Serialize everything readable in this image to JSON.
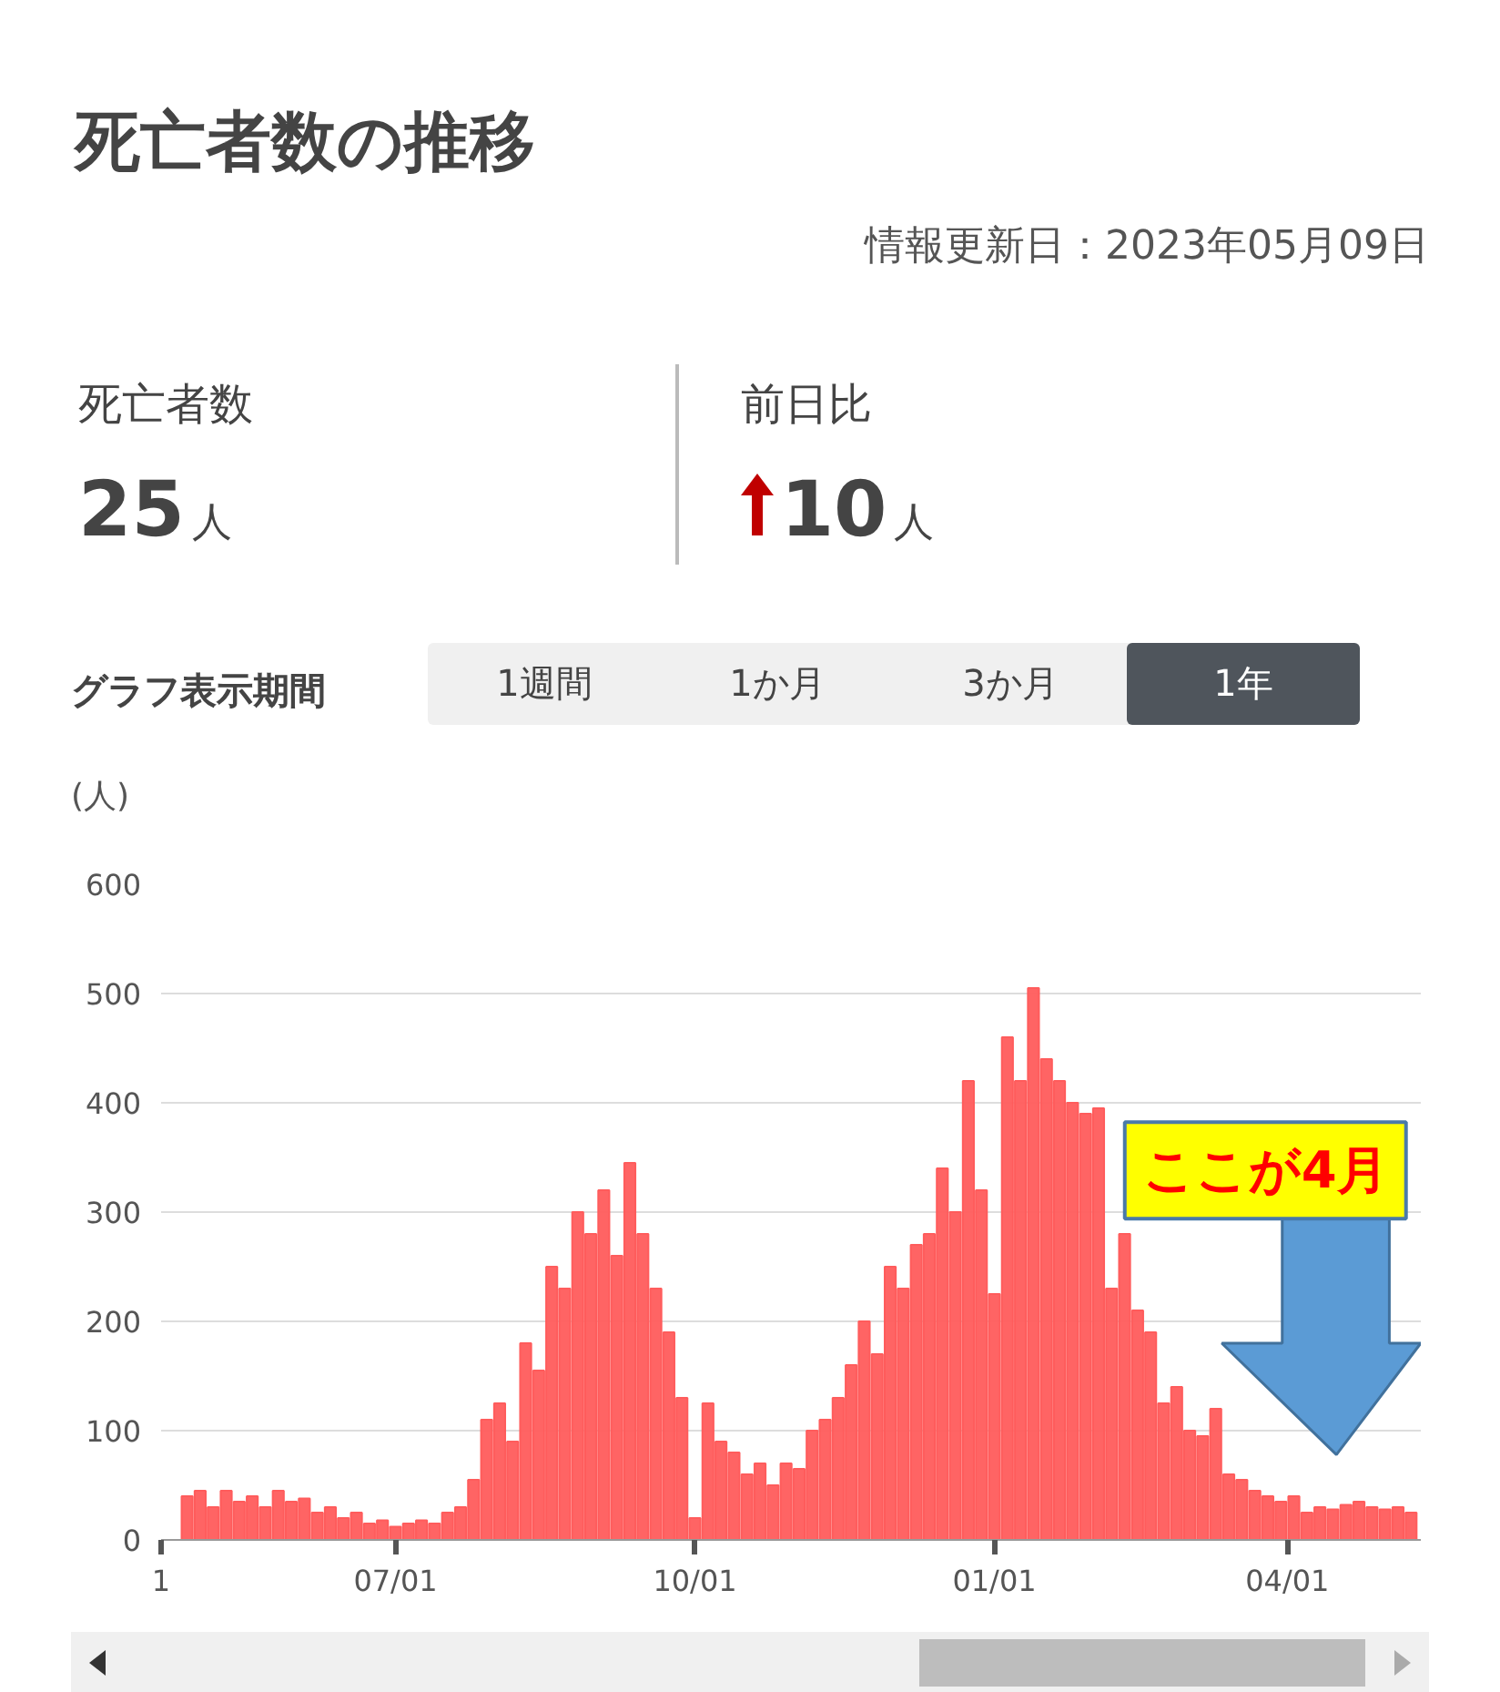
{
  "chart_data": {
    "type": "bar",
    "title": "死亡者数の推移",
    "subtitle": "情報更新日：2023年05月09日",
    "ylabel": "(人)",
    "annotations": [
      "死亡者数",
      "25",
      "人",
      "前日比",
      "10",
      "人",
      "グラフ表示期間",
      "1週間",
      "1か月",
      "3か月",
      "1年",
      "ここが4月"
    ],
    "x": [
      "2022-04-28",
      "2022-05-02",
      "2022-05-06",
      "2022-05-10",
      "2022-05-14",
      "2022-05-18",
      "2022-05-22",
      "2022-05-26",
      "2022-05-30",
      "2022-06-03",
      "2022-06-07",
      "2022-06-11",
      "2022-06-15",
      "2022-06-19",
      "2022-06-23",
      "2022-06-27",
      "2022-07-01",
      "2022-07-05",
      "2022-07-09",
      "2022-07-13",
      "2022-07-17",
      "2022-07-21",
      "2022-07-25",
      "2022-07-29",
      "2022-08-02",
      "2022-08-06",
      "2022-08-10",
      "2022-08-14",
      "2022-08-18",
      "2022-08-22",
      "2022-08-26",
      "2022-08-30",
      "2022-09-03",
      "2022-09-07",
      "2022-09-11",
      "2022-09-15",
      "2022-09-19",
      "2022-09-23",
      "2022-09-27",
      "2022-10-01",
      "2022-10-05",
      "2022-10-09",
      "2022-10-13",
      "2022-10-17",
      "2022-10-21",
      "2022-10-25",
      "2022-10-29",
      "2022-11-02",
      "2022-11-06",
      "2022-11-10",
      "2022-11-14",
      "2022-11-18",
      "2022-11-22",
      "2022-11-26",
      "2022-11-30",
      "2022-12-04",
      "2022-12-08",
      "2022-12-12",
      "2022-12-16",
      "2022-12-20",
      "2022-12-24",
      "2022-12-28",
      "2023-01-01",
      "2023-01-05",
      "2023-01-09",
      "2023-01-13",
      "2023-01-17",
      "2023-01-21",
      "2023-01-25",
      "2023-01-29",
      "2023-02-02",
      "2023-02-06",
      "2023-02-10",
      "2023-02-14",
      "2023-02-18",
      "2023-02-22",
      "2023-02-26",
      "2023-03-02",
      "2023-03-06",
      "2023-03-10",
      "2023-03-14",
      "2023-03-18",
      "2023-03-22",
      "2023-03-26",
      "2023-03-30",
      "2023-04-03",
      "2023-04-07",
      "2023-04-11",
      "2023-04-15",
      "2023-04-19",
      "2023-04-23",
      "2023-04-27",
      "2023-05-01",
      "2023-05-05",
      "2023-05-09"
    ],
    "values": [
      40,
      45,
      30,
      45,
      35,
      40,
      30,
      45,
      35,
      38,
      25,
      30,
      20,
      25,
      15,
      18,
      12,
      15,
      18,
      15,
      25,
      30,
      55,
      110,
      125,
      90,
      180,
      155,
      250,
      230,
      300,
      280,
      320,
      260,
      345,
      280,
      230,
      190,
      130,
      20,
      125,
      90,
      80,
      60,
      70,
      50,
      70,
      65,
      100,
      110,
      130,
      160,
      200,
      170,
      250,
      230,
      270,
      280,
      340,
      300,
      420,
      320,
      225,
      460,
      420,
      505,
      440,
      420,
      400,
      390,
      395,
      230,
      280,
      210,
      190,
      125,
      140,
      100,
      95,
      120,
      60,
      55,
      45,
      40,
      35,
      40,
      25,
      30,
      28,
      32,
      35,
      30,
      28,
      30,
      25
    ],
    "color": "#ff5c5c",
    "xlim": [
      "2022-04-20",
      "2023-05-12"
    ],
    "xticks": [
      {
        "value": "2022-04-20",
        "label": "1"
      },
      {
        "value": "2022-07-01",
        "label": "07/01"
      },
      {
        "value": "2022-10-01",
        "label": "10/01"
      },
      {
        "value": "2023-01-01",
        "label": "01/01"
      },
      {
        "value": "2023-04-01",
        "label": "04/01"
      }
    ],
    "ylim": [
      0,
      600
    ],
    "yticks": [
      0,
      100,
      200,
      300,
      400,
      500,
      600
    ],
    "grid": "y"
  }
}
